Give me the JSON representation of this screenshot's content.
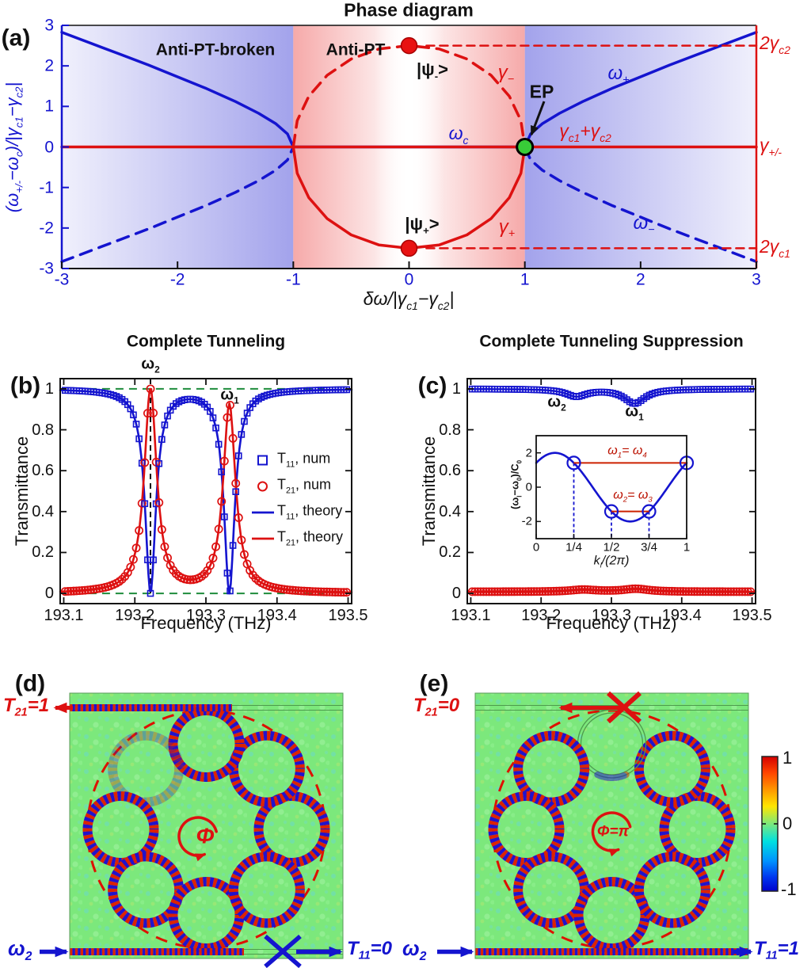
{
  "colors": {
    "blue": "#1414cf",
    "red": "#dd1111",
    "green_guide": "#1e8c3c",
    "ep_green": "#38cc38",
    "state_red": "#e81212",
    "field_bg": "#7ce87c",
    "waveguide": "#4d9a4d",
    "stripe_red": "#dd2200",
    "stripe_blue": "#2211cc",
    "band_blue": "#6a6ae0",
    "band_red": "#f07070"
  },
  "chart_data": [
    {
      "id": "phase_diagram",
      "type": "line",
      "panel_label": "(a)",
      "title": "Phase diagram",
      "xlabel": "δω/|γ_{c1}−γ_{c2}|",
      "ylabel": "(ω_{+/-}−ω_{c})/|γ_{c1}−γ_{c2}|",
      "xlim": [
        -3,
        3
      ],
      "ylim": [
        -3,
        3
      ],
      "xticks": [
        {
          "v": -3,
          "label": "-3"
        },
        {
          "v": -2,
          "label": "-2"
        },
        {
          "v": -1,
          "label": "-1"
        },
        {
          "v": 0,
          "label": "0"
        },
        {
          "v": 1,
          "label": "1"
        },
        {
          "v": 2,
          "label": "2"
        },
        {
          "v": 3,
          "label": "3"
        }
      ],
      "yticks": [
        {
          "v": 3,
          "label": "3"
        },
        {
          "v": 2,
          "label": "2"
        },
        {
          "v": 1,
          "label": "1"
        },
        {
          "v": 0,
          "label": "0"
        },
        {
          "v": -1,
          "label": "-1"
        },
        {
          "v": -2,
          "label": "-2"
        },
        {
          "v": -3,
          "label": "-3"
        }
      ],
      "right_axis_labels": [
        {
          "y": 2.5,
          "label": "2γ_{c2}"
        },
        {
          "y": 0,
          "label": "γ_{+/-}"
        },
        {
          "y": -2.5,
          "label": "2γ_{c1}"
        }
      ],
      "regions": [
        {
          "label": "Anti-PT-broken",
          "x_range": [
            -3,
            -1
          ]
        },
        {
          "label": "Anti-PT",
          "x_range": [
            -1,
            1
          ]
        }
      ],
      "series": [
        {
          "name": "omega_plus_real",
          "style": "solid",
          "color_key": "blue",
          "width": 3.5,
          "segments": [
            [
              [
                -3,
                2.83
              ],
              [
                -2.75,
                2.56
              ],
              [
                -2.5,
                2.29
              ],
              [
                -2.25,
                2.02
              ],
              [
                -2,
                1.73
              ],
              [
                -1.75,
                1.44
              ],
              [
                -1.5,
                1.12
              ],
              [
                -1.3,
                0.83
              ],
              [
                -1.15,
                0.57
              ],
              [
                -1.05,
                0.32
              ],
              [
                -1,
                0
              ],
              [
                1,
                0
              ],
              [
                1.05,
                0.32
              ],
              [
                1.15,
                0.57
              ],
              [
                1.3,
                0.83
              ],
              [
                1.5,
                1.12
              ],
              [
                1.75,
                1.44
              ],
              [
                2,
                1.73
              ],
              [
                2.25,
                2.02
              ],
              [
                2.5,
                2.29
              ],
              [
                2.75,
                2.56
              ],
              [
                3,
                2.83
              ]
            ]
          ]
        },
        {
          "name": "omega_minus_real",
          "style": "dashed",
          "color_key": "blue",
          "width": 3.5,
          "segments": [
            [
              [
                -3,
                -2.83
              ],
              [
                -2.75,
                -2.56
              ],
              [
                -2.5,
                -2.29
              ],
              [
                -2.25,
                -2.02
              ],
              [
                -2,
                -1.73
              ],
              [
                -1.75,
                -1.44
              ],
              [
                -1.5,
                -1.12
              ],
              [
                -1.3,
                -0.83
              ],
              [
                -1.15,
                -0.57
              ],
              [
                -1.05,
                -0.32
              ],
              [
                -1,
                0
              ]
            ],
            [
              [
                1,
                0
              ],
              [
                1.05,
                -0.32
              ],
              [
                1.15,
                -0.57
              ],
              [
                1.3,
                -0.83
              ],
              [
                1.5,
                -1.12
              ],
              [
                1.75,
                -1.44
              ],
              [
                2,
                -1.73
              ],
              [
                2.25,
                -2.02
              ],
              [
                2.5,
                -2.29
              ],
              [
                2.75,
                -2.56
              ],
              [
                3,
                -2.83
              ]
            ]
          ]
        },
        {
          "name": "gamma_sum_line",
          "style": "solid",
          "color_key": "red",
          "width": 3.5,
          "segments": [
            [
              [
                -3,
                0
              ],
              [
                3,
                0
              ]
            ]
          ]
        },
        {
          "name": "gamma_plus_arc",
          "style": "solid",
          "color_key": "red",
          "width": 3.5,
          "segments": [
            [
              [
                -1,
                0
              ],
              [
                -0.966,
                -0.65
              ],
              [
                -0.866,
                -1.25
              ],
              [
                -0.707,
                -1.77
              ],
              [
                -0.5,
                -2.17
              ],
              [
                -0.259,
                -2.42
              ],
              [
                0,
                -2.5
              ],
              [
                0.259,
                -2.42
              ],
              [
                0.5,
                -2.17
              ],
              [
                0.707,
                -1.77
              ],
              [
                0.866,
                -1.25
              ],
              [
                0.966,
                -0.65
              ],
              [
                1,
                0
              ]
            ]
          ]
        },
        {
          "name": "gamma_minus_arc",
          "style": "dashed",
          "color_key": "red",
          "width": 3.5,
          "segments": [
            [
              [
                -1,
                0
              ],
              [
                -0.966,
                0.65
              ],
              [
                -0.866,
                1.25
              ],
              [
                -0.707,
                1.77
              ],
              [
                -0.5,
                2.17
              ],
              [
                -0.259,
                2.42
              ],
              [
                0,
                2.5
              ],
              [
                0.259,
                2.42
              ],
              [
                0.5,
                2.17
              ],
              [
                0.707,
                1.77
              ],
              [
                0.866,
                1.25
              ],
              [
                0.966,
                0.65
              ],
              [
                1,
                0
              ]
            ]
          ]
        },
        {
          "name": "ref_2gamma_c2",
          "style": "dashed",
          "color_key": "red",
          "width": 2.5,
          "segments": [
            [
              [
                0.15,
                2.5
              ],
              [
                3,
                2.5
              ]
            ]
          ]
        },
        {
          "name": "ref_2gamma_c1",
          "style": "dashed",
          "color_key": "red",
          "width": 2.5,
          "segments": [
            [
              [
                0.15,
                -2.5
              ],
              [
                3,
                -2.5
              ]
            ]
          ]
        }
      ],
      "markers": [
        {
          "x": 0,
          "y": 2.5,
          "kind": "state"
        },
        {
          "x": 0,
          "y": -2.5,
          "kind": "state"
        },
        {
          "x": 1,
          "y": 0,
          "kind": "ep"
        }
      ],
      "annotations": {
        "psi_minus": "|ψ_{-}>",
        "gamma_minus": "γ_{−}",
        "omega_plus": "ω_{+}",
        "ep": "EP",
        "omega_c": "ω_{c}",
        "gamma_sum": "γ_{c1}+γ_{c2}",
        "gamma_plus": "γ_{+}",
        "omega_minus": "ω_{−}",
        "psi_plus": "|ψ_{+}>"
      }
    },
    {
      "id": "complete_tunneling",
      "type": "line+scatter",
      "panel_label": "(b)",
      "title": "Complete Tunneling",
      "xlabel": "Frequency (THz)",
      "ylabel": "Transmittance",
      "xlim": [
        193.1,
        193.5
      ],
      "ylim": [
        0,
        1.05
      ],
      "xticks": [
        {
          "v": 193.1,
          "label": "193.1"
        },
        {
          "v": 193.2,
          "label": "193.2"
        },
        {
          "v": 193.3,
          "label": "193.3"
        },
        {
          "v": 193.4,
          "label": "193.4"
        },
        {
          "v": 193.5,
          "label": "193.5"
        }
      ],
      "yticks": [
        {
          "v": 0,
          "label": "0"
        },
        {
          "v": 0.2,
          "label": "0.2"
        },
        {
          "v": 0.4,
          "label": "0.4"
        },
        {
          "v": 0.6,
          "label": "0.6"
        },
        {
          "v": 0.8,
          "label": "0.8"
        },
        {
          "v": 1,
          "label": "1"
        }
      ],
      "legend": [
        "T_{11}, num",
        "T_{21}, num",
        "T_{11}, theory",
        "T_{21}, theory"
      ],
      "resonances": {
        "omega2": {
          "f": 193.222,
          "t21_peak": 1.0
        },
        "omega1": {
          "f": 193.333,
          "t21_peak": 0.92
        },
        "linewidth_t11": 0.009,
        "linewidth_t21": 0.0105
      },
      "peak_labels": {
        "omega2": "ω_{2}",
        "omega1": "ω_{1}"
      },
      "guides": {
        "dashed_levels": [
          0,
          1
        ],
        "dashed_vertical_at": 193.222
      }
    },
    {
      "id": "complete_tunneling_suppression",
      "type": "line+scatter",
      "panel_label": "(c)",
      "title": "Complete Tunneling Suppression",
      "xlabel": "Frequency (THz)",
      "ylabel": "Transmittance",
      "xlim": [
        193.1,
        193.5
      ],
      "ylim": [
        0,
        1.05
      ],
      "xticks": [
        {
          "v": 193.1,
          "label": "193.1"
        },
        {
          "v": 193.2,
          "label": "193.2"
        },
        {
          "v": 193.3,
          "label": "193.3"
        },
        {
          "v": 193.4,
          "label": "193.4"
        },
        {
          "v": 193.5,
          "label": "193.5"
        }
      ],
      "yticks": [
        {
          "v": 0,
          "label": "0"
        },
        {
          "v": 0.2,
          "label": "0.2"
        },
        {
          "v": 0.4,
          "label": "0.4"
        },
        {
          "v": 0.6,
          "label": "0.6"
        },
        {
          "v": 0.8,
          "label": "0.8"
        },
        {
          "v": 1,
          "label": "1"
        }
      ],
      "t11_dips": [
        {
          "f": 193.25,
          "depth": 0.035,
          "width": 0.018,
          "label": "ω_{2}"
        },
        {
          "f": 193.333,
          "depth": 0.07,
          "width": 0.018,
          "label": "ω_{1}"
        }
      ],
      "t21_base": 0.008,
      "t21_bumps": [
        {
          "f": 193.26,
          "height": 0.01,
          "width": 0.022
        },
        {
          "f": 193.335,
          "height": 0.014,
          "width": 0.022
        }
      ],
      "peak_labels": {
        "omega2": "ω_{2}",
        "omega1": "ω_{1}"
      }
    },
    {
      "id": "dispersion_inset",
      "type": "line",
      "xlabel": "k_{l}/(2π)",
      "ylabel": "(ω_{l}−ω_{0})/C_{0}",
      "xlim": [
        0,
        1
      ],
      "ylim": [
        -3,
        3
      ],
      "xticks": [
        {
          "v": 0,
          "label": "0"
        },
        {
          "v": 0.25,
          "label": "1/4"
        },
        {
          "v": 0.5,
          "label": "1/2"
        },
        {
          "v": 0.75,
          "label": "3/4"
        },
        {
          "v": 1,
          "label": "1"
        }
      ],
      "yticks": [
        {
          "v": 2,
          "label": "2"
        },
        {
          "v": 0,
          "label": "0"
        },
        {
          "v": -2,
          "label": "-2"
        }
      ],
      "curve": {
        "type": "cosine",
        "amplitude": 2,
        "phase_deg": -45
      },
      "level_lines": [
        {
          "y": 1.414,
          "k_from": 0.25,
          "k_to": 1.0,
          "label": "ω_{1}= ω_{4}"
        },
        {
          "y": -1.414,
          "k_from": 0.5,
          "k_to": 0.75,
          "label": "ω_{2}= ω_{3}"
        }
      ],
      "markers": [
        {
          "k": 0.25,
          "y": 1.414
        },
        {
          "k": 1.0,
          "y": 1.414
        },
        {
          "k": 0.5,
          "y": -1.414
        },
        {
          "k": 0.75,
          "y": -1.414
        }
      ],
      "dashed_drops": [
        {
          "k": 0.25,
          "y": 1.414
        },
        {
          "k": 0.5,
          "y": -1.414
        },
        {
          "k": 0.75,
          "y": -1.414
        }
      ]
    }
  ],
  "field_maps": {
    "panel_d": {
      "panel_label": "(d)",
      "drop_port_label": "T_{21}=1",
      "input_label": "ω_{2}",
      "through_port_label": "T_{11}=0",
      "flux_label": "Φ",
      "rings": 8,
      "weak_ring_angle_deg": 135,
      "blocked_port": "through"
    },
    "panel_e": {
      "panel_label": "(e)",
      "drop_port_label": "T_{21}=0",
      "input_label": "ω_{2}",
      "through_port_label": "T_{11}=1",
      "flux_label": "Φ=π",
      "rings": 8,
      "empty_ring_angle_deg": 90,
      "blocked_port": "drop"
    },
    "colorbar": {
      "ticks": [
        "1",
        "0",
        "-1"
      ]
    }
  }
}
